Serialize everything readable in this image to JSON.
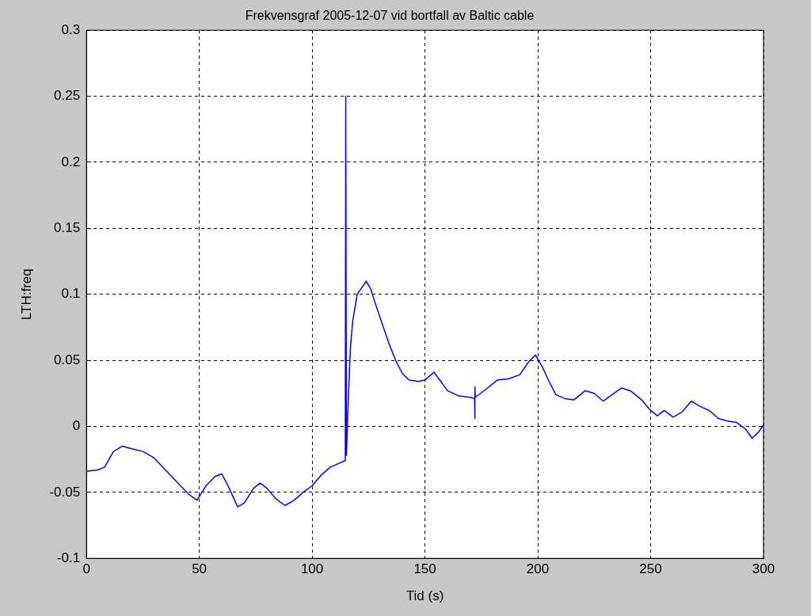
{
  "chart_data": {
    "type": "line",
    "title": "Frekvensgraf 2005-12-07 vid bortfall av Baltic cable",
    "xlabel": "Tid (s)",
    "ylabel": "LTH:freq",
    "xlim": [
      0,
      300
    ],
    "xticks": [
      0,
      50,
      100,
      150,
      200,
      250,
      300
    ],
    "ylim": [
      -0.1,
      0.3
    ],
    "yticks": [
      -0.1,
      -0.05,
      0,
      0.05,
      0.1,
      0.15,
      0.2,
      0.25,
      0.3
    ],
    "grid": true,
    "legend": false,
    "marker": "none",
    "line_style": "solid",
    "series": [
      {
        "color": "#0000ff",
        "x": [
          0,
          5,
          8,
          12,
          16,
          20,
          25,
          30,
          35,
          40,
          45,
          49,
          53,
          57,
          60,
          63,
          67,
          70,
          74,
          77,
          80,
          84,
          88,
          92,
          96,
          100,
          104,
          108,
          112,
          114.7,
          114.9,
          115.2,
          116,
          117,
          118,
          120,
          122,
          124,
          126,
          128,
          131,
          134,
          137,
          140,
          143,
          147,
          150,
          154,
          157,
          160,
          165,
          170,
          172,
          172.1,
          172.2,
          172.3,
          177,
          182,
          187,
          192,
          196,
          199,
          202,
          205,
          208,
          212,
          216,
          221,
          225,
          229,
          233,
          237,
          241,
          246,
          250,
          253,
          256,
          260,
          264,
          268,
          272,
          276,
          280,
          284,
          288,
          292,
          295,
          298,
          300
        ],
        "values": [
          -0.034,
          -0.033,
          -0.031,
          -0.019,
          -0.015,
          -0.017,
          -0.019,
          -0.024,
          -0.033,
          -0.042,
          -0.051,
          -0.056,
          -0.045,
          -0.038,
          -0.036,
          -0.046,
          -0.061,
          -0.058,
          -0.047,
          -0.043,
          -0.047,
          -0.055,
          -0.06,
          -0.056,
          -0.05,
          -0.045,
          -0.037,
          -0.031,
          -0.028,
          -0.026,
          0.25,
          -0.022,
          0.02,
          0.06,
          0.08,
          0.1,
          0.105,
          0.11,
          0.104,
          0.093,
          0.078,
          0.063,
          0.05,
          0.04,
          0.035,
          0.034,
          0.035,
          0.041,
          0.034,
          0.027,
          0.023,
          0.022,
          0.021,
          0.006,
          0.03,
          0.022,
          0.028,
          0.035,
          0.036,
          0.039,
          0.049,
          0.054,
          0.045,
          0.034,
          0.024,
          0.021,
          0.02,
          0.027,
          0.025,
          0.019,
          0.024,
          0.029,
          0.027,
          0.02,
          0.012,
          0.008,
          0.012,
          0.007,
          0.011,
          0.019,
          0.015,
          0.012,
          0.006,
          0.004,
          0.003,
          -0.002,
          -0.009,
          -0.004,
          0.001
        ]
      }
    ]
  }
}
